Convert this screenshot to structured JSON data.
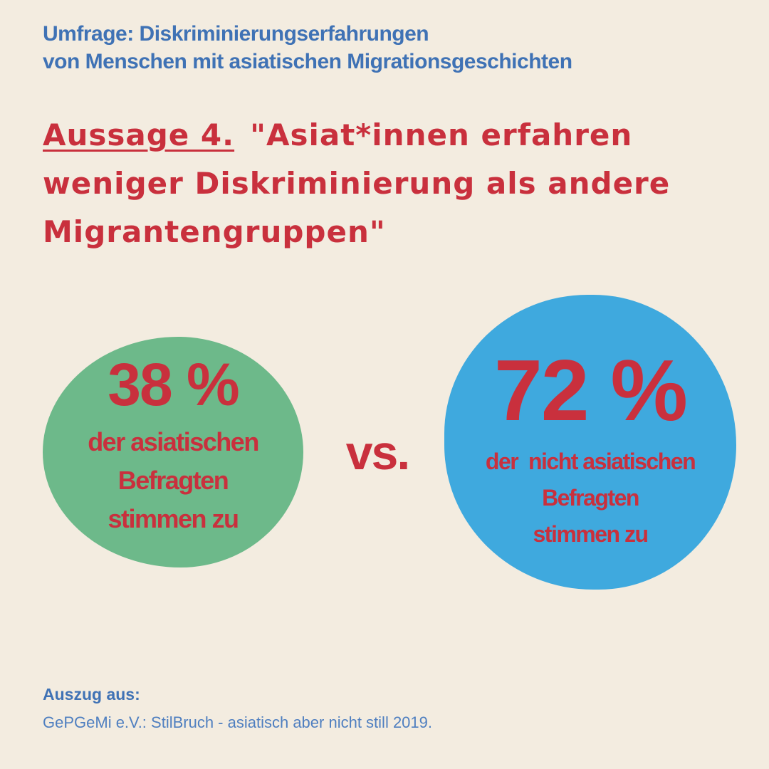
{
  "header": {
    "line1": "Umfrage: Diskriminierungserfahrungen",
    "line2": "von Menschen mit asiatischen Migrationsgeschichten"
  },
  "statement": {
    "label": "Aussage 4.",
    "line1": "\"Asiat*innen erfahren",
    "line2": "weniger Diskriminierung als andere",
    "line3": "Migrantengruppen\""
  },
  "stats": {
    "left": {
      "value": "38 %",
      "percent": 38,
      "caption_line1": "der asiatischen",
      "caption_line2": "Befragten",
      "caption_line3": "stimmen zu",
      "color": "#6db98a"
    },
    "right": {
      "value": "72 %",
      "percent": 72,
      "caption_line1": "der  nicht asiatischen",
      "caption_line2": "Befragten",
      "caption_line3": "stimmen zu",
      "color": "#3fa9de"
    },
    "versus": "vs."
  },
  "source": {
    "label": "Auszug aus:",
    "text": "GePGeMi e.V.: StilBruch - asiatisch aber nicht still 2019."
  },
  "colors": {
    "background": "#f3ece0",
    "title_blue": "#3f72b5",
    "accent_red": "#c9303d"
  }
}
